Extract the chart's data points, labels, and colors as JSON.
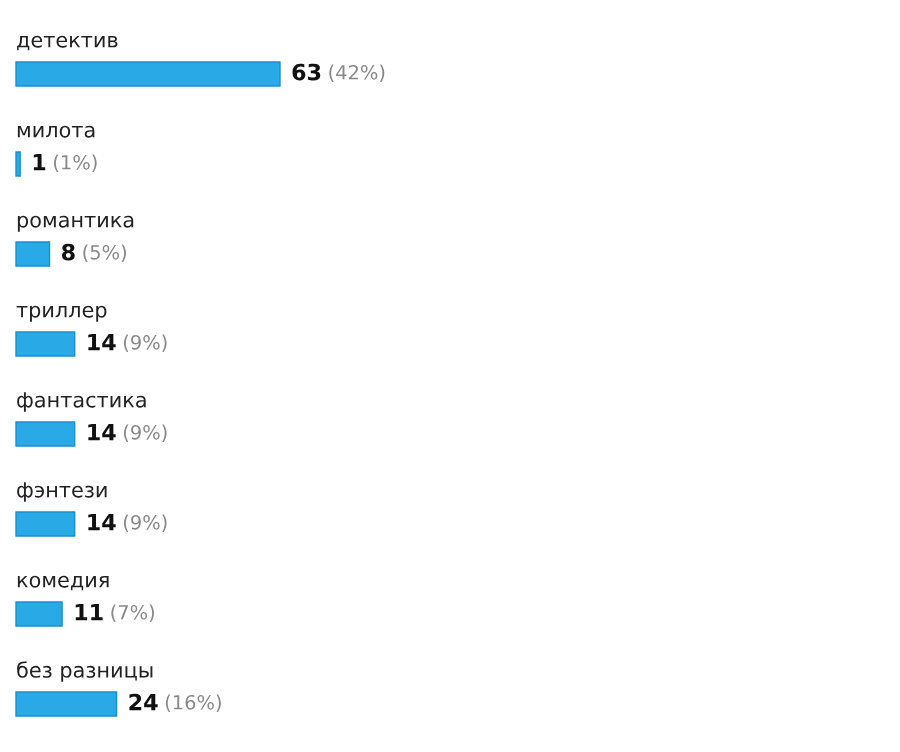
{
  "chart_data": {
    "type": "bar",
    "orientation": "horizontal",
    "tick_labels": false,
    "categories": [
      "детектив",
      "милота",
      "романтика",
      "триллер",
      "фантастика",
      "фэнтези",
      "комедия",
      "без разницы"
    ],
    "values": [
      63,
      1,
      8,
      14,
      14,
      14,
      11,
      24
    ],
    "color": "#29aae6",
    "value_labels": [
      "63 (42%)",
      "1 (1%)",
      "8 (5%)",
      "14 (9%)",
      "14 (9%)",
      "14 (9%)",
      "11 (7%)",
      "24 (16%)"
    ]
  }
}
